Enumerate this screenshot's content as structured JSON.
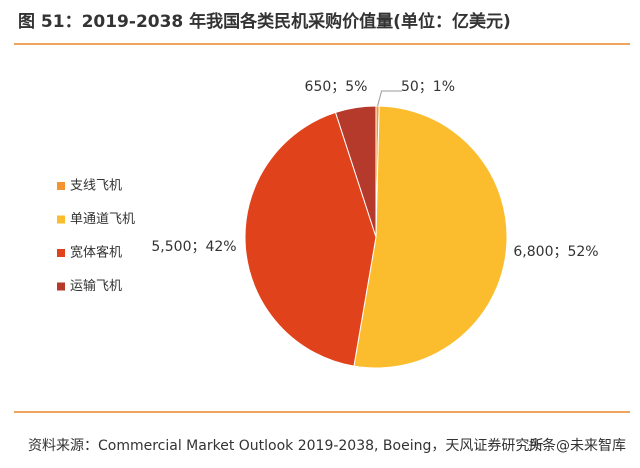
{
  "chart_data": {
    "type": "pie",
    "title": "图 51：2019-2038 年我国各类民机采购价值量(单位：亿美元)",
    "categories": [
      "支线飞机",
      "单通道飞机",
      "宽体客机",
      "运输飞机"
    ],
    "values": [
      50,
      6800,
      5500,
      650
    ],
    "value_labels": [
      "50；1%",
      "6,800；52%",
      "5,500；42%",
      "650；5%"
    ],
    "colors": [
      "#f39431",
      "#fbbd2e",
      "#e0421c",
      "#b63a2b"
    ],
    "legend": "left",
    "source": "资料来源：Commercial Market Outlook 2019-2038, Boeing，天风证券研究所",
    "watermark": "头条@未来智库"
  }
}
